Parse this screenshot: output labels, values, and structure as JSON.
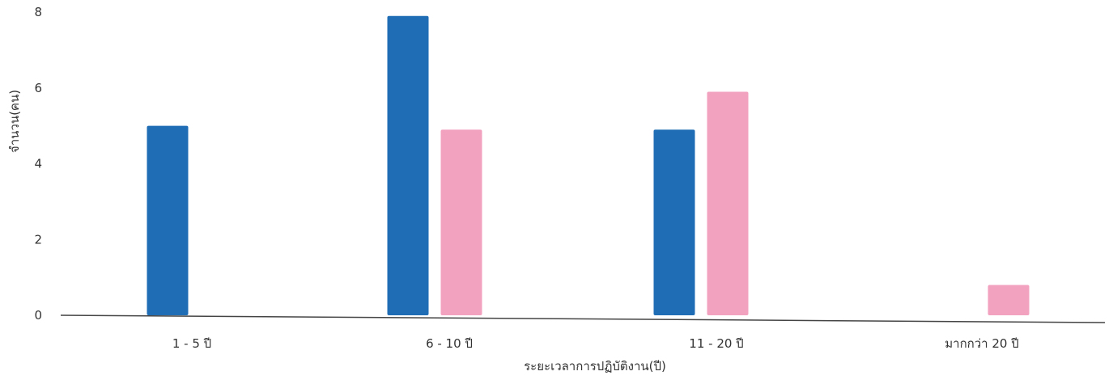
{
  "chart_data": {
    "type": "bar",
    "title": "",
    "xlabel": "ระยะเวลาการปฏิบัติงาน(ปี)",
    "ylabel": "จำนวน(คน)",
    "ylim": [
      0,
      8
    ],
    "y_ticks": [
      "0",
      "2",
      "4",
      "6",
      "8"
    ],
    "categories": [
      "1 - 5 ปี",
      "6 - 10 ปี",
      "11 - 20 ปี",
      "มากกว่า 20 ปี"
    ],
    "series": [
      {
        "values": [
          5,
          7.9,
          4.9,
          0
        ],
        "color": "#1f6db5"
      },
      {
        "values": [
          0,
          4.9,
          5.9,
          0.8
        ],
        "color": "#f2a1bf"
      }
    ],
    "grid": false,
    "legend": "none"
  }
}
